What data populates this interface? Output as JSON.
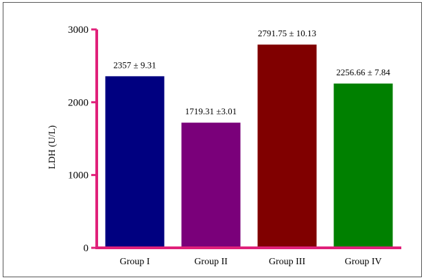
{
  "chart_data": {
    "type": "bar",
    "title": "",
    "xlabel": "",
    "ylabel": "LDH (U/L)",
    "ylim": [
      0,
      3000
    ],
    "yticks": [
      0,
      1000,
      2000,
      3000
    ],
    "categories": [
      "Group I",
      "Group II",
      "Group III",
      "Group IV"
    ],
    "values": [
      2357,
      1719.31,
      2791.75,
      2256.66
    ],
    "value_labels": [
      "2357 ± 9.31",
      "1719.31 ±3.01",
      "2791.75 ± 10.13",
      "2256.66 ± 7.84"
    ],
    "colors": [
      "#000080",
      "#7a007a",
      "#800000",
      "#008000"
    ],
    "axis_color": "#e0207a",
    "grid": false,
    "legend": "none"
  }
}
